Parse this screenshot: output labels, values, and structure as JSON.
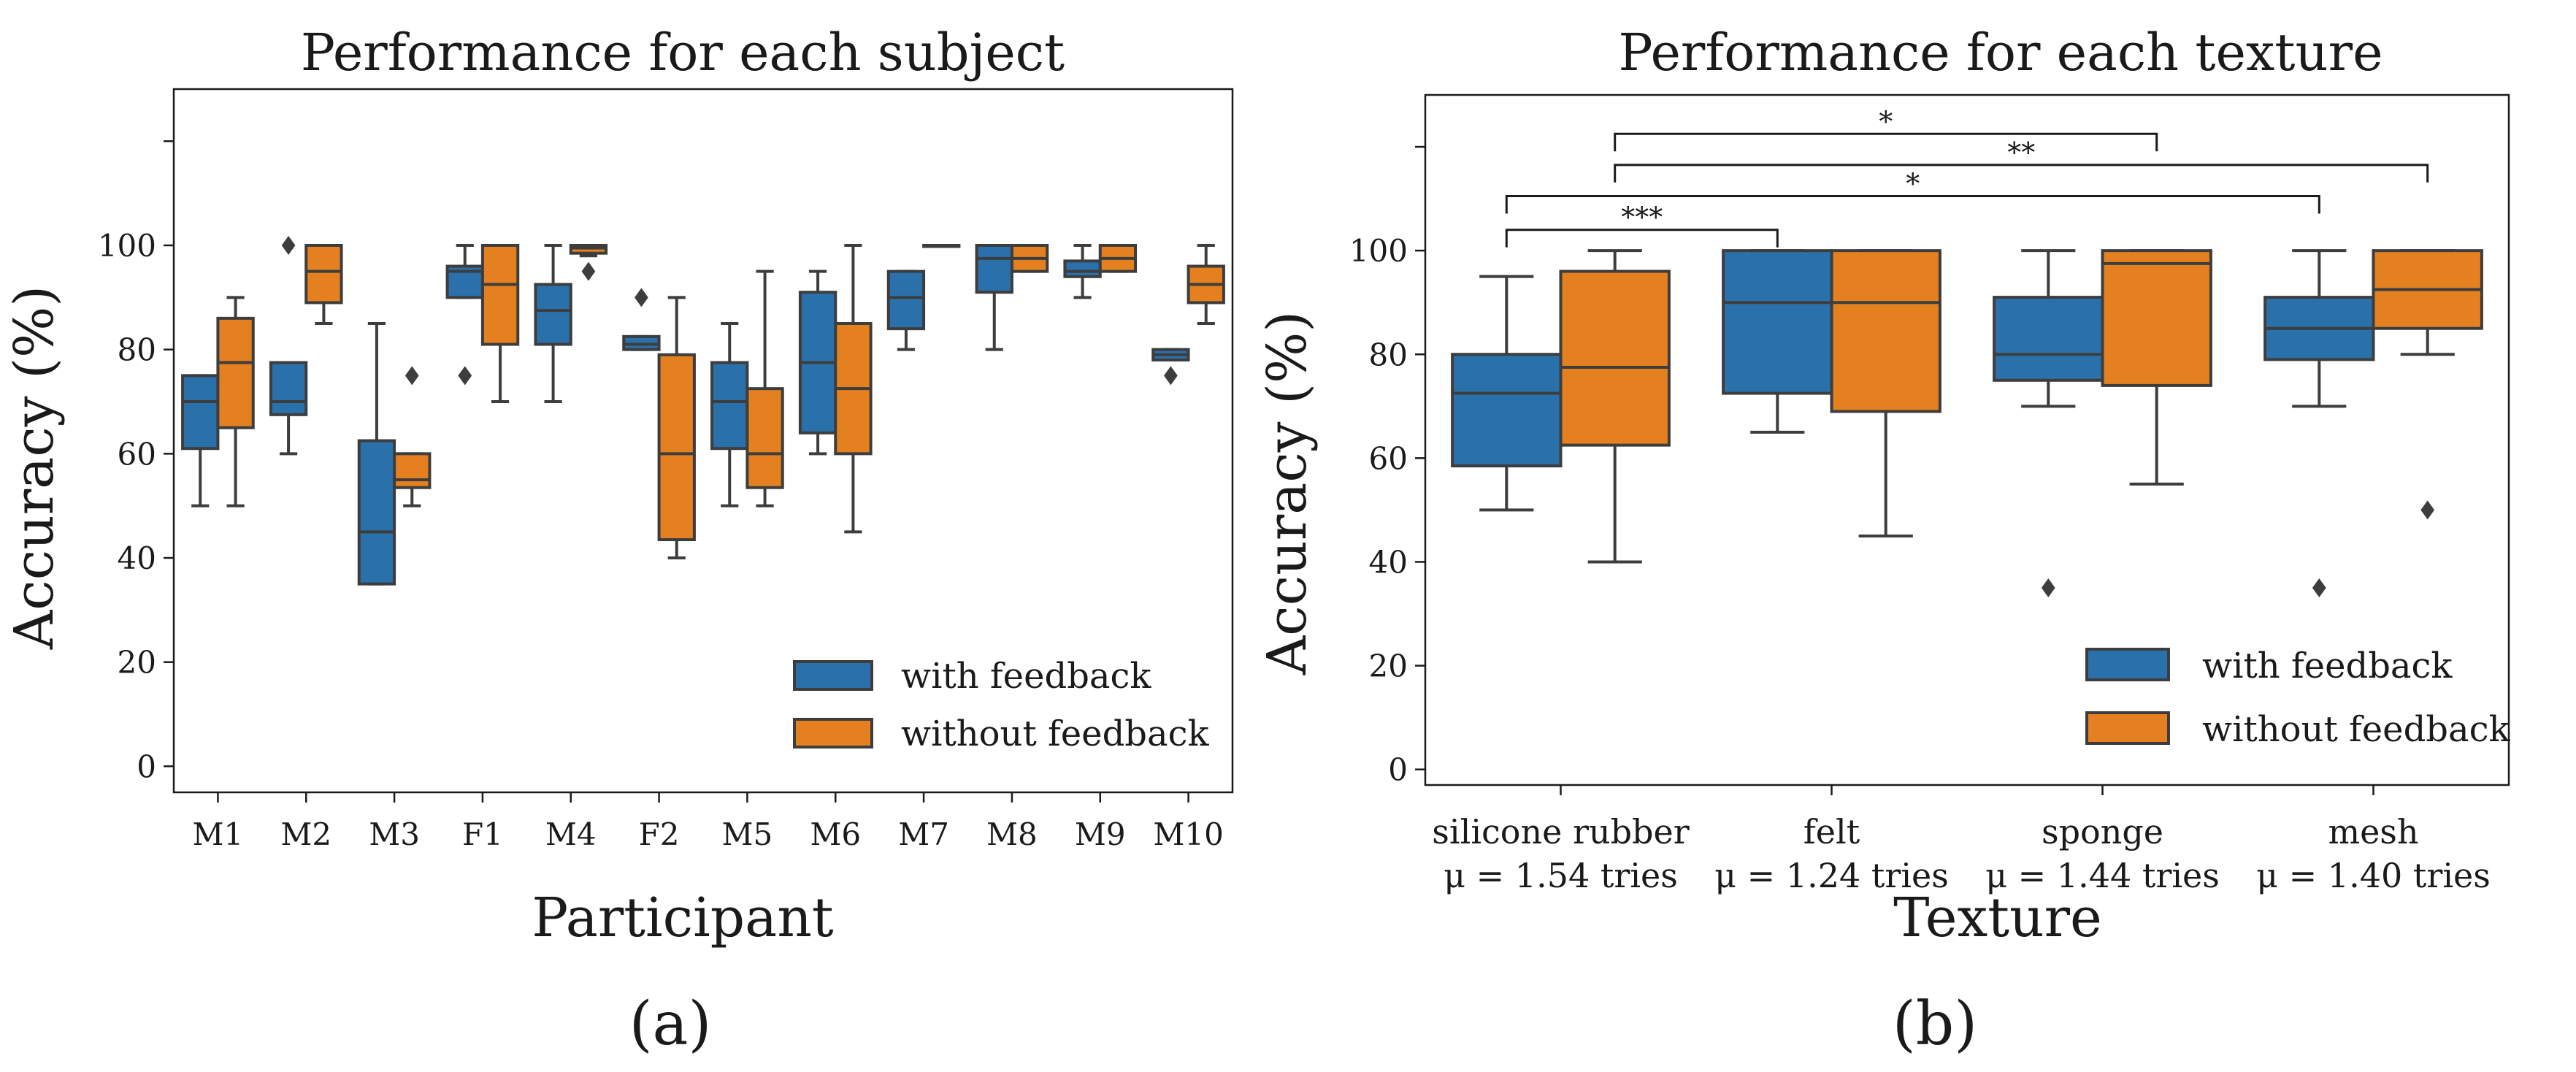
{
  "figure": {
    "label_a": "(a)",
    "label_b": "(b)"
  },
  "colors": {
    "with_feedback": "#2a71ab",
    "without_feedback": "#e4801f",
    "outline": "#3d3d3d"
  },
  "chart_data": [
    {
      "type": "box",
      "title": "Performance for each subject",
      "xlabel": "Participant",
      "ylabel": "Accuracy (%)",
      "ylim": [
        -5,
        130
      ],
      "yticks": [
        0,
        20,
        40,
        60,
        80,
        100
      ],
      "legend": {
        "position": "lower-right",
        "entries": [
          "with feedback",
          "without feedback"
        ]
      },
      "categories": [
        "M1",
        "M2",
        "M3",
        "F1",
        "M4",
        "F2",
        "M5",
        "M6",
        "M7",
        "M8",
        "M9",
        "M10"
      ],
      "series": [
        {
          "name": "with feedback",
          "boxes": [
            {
              "whislo": 50,
              "q1": 61,
              "med": 70,
              "q3": 75,
              "whishi": 75,
              "fliers": []
            },
            {
              "whislo": 60,
              "q1": 67.5,
              "med": 70,
              "q3": 77.5,
              "whishi": 77.5,
              "fliers": [
                100
              ]
            },
            {
              "whislo": 35,
              "q1": 35,
              "med": 45,
              "q3": 62.5,
              "whishi": 85,
              "fliers": []
            },
            {
              "whislo": 90,
              "q1": 90,
              "med": 95,
              "q3": 96,
              "whishi": 100,
              "fliers": [
                75
              ]
            },
            {
              "whislo": 70,
              "q1": 81,
              "med": 87.5,
              "q3": 92.5,
              "whishi": 100,
              "fliers": []
            },
            {
              "whislo": 80,
              "q1": 80,
              "med": 81,
              "q3": 82.5,
              "whishi": 82.5,
              "fliers": [
                90
              ]
            },
            {
              "whislo": 50,
              "q1": 61,
              "med": 70,
              "q3": 77.5,
              "whishi": 85,
              "fliers": []
            },
            {
              "whislo": 60,
              "q1": 64,
              "med": 77.5,
              "q3": 91,
              "whishi": 95,
              "fliers": []
            },
            {
              "whislo": 80,
              "q1": 84,
              "med": 90,
              "q3": 95,
              "whishi": 95,
              "fliers": []
            },
            {
              "whislo": 80,
              "q1": 91,
              "med": 97.5,
              "q3": 100,
              "whishi": 100,
              "fliers": []
            },
            {
              "whislo": 90,
              "q1": 94,
              "med": 95,
              "q3": 97,
              "whishi": 100,
              "fliers": []
            },
            {
              "whislo": 78,
              "q1": 78,
              "med": 79,
              "q3": 80,
              "whishi": 80,
              "fliers": [
                75
              ]
            }
          ]
        },
        {
          "name": "without feedback",
          "boxes": [
            {
              "whislo": 50,
              "q1": 65,
              "med": 77.5,
              "q3": 86,
              "whishi": 90,
              "fliers": []
            },
            {
              "whislo": 85,
              "q1": 89,
              "med": 95,
              "q3": 100,
              "whishi": 100,
              "fliers": []
            },
            {
              "whislo": 50,
              "q1": 53.5,
              "med": 55,
              "q3": 60,
              "whishi": 60,
              "fliers": [
                75
              ]
            },
            {
              "whislo": 70,
              "q1": 81,
              "med": 92.5,
              "q3": 100,
              "whishi": 100,
              "fliers": []
            },
            {
              "whislo": 98,
              "q1": 98.5,
              "med": 99.5,
              "q3": 100,
              "whishi": 100,
              "fliers": [
                95
              ]
            },
            {
              "whislo": 40,
              "q1": 43.5,
              "med": 60,
              "q3": 79,
              "whishi": 90,
              "fliers": []
            },
            {
              "whislo": 50,
              "q1": 53.5,
              "med": 60,
              "q3": 72.5,
              "whishi": 95,
              "fliers": []
            },
            {
              "whislo": 45,
              "q1": 60,
              "med": 72.5,
              "q3": 85,
              "whishi": 100,
              "fliers": []
            },
            {
              "whislo": 100,
              "q1": 100,
              "med": 100,
              "q3": 100,
              "whishi": 100,
              "fliers": []
            },
            {
              "whislo": 95,
              "q1": 95,
              "med": 97.5,
              "q3": 100,
              "whishi": 100,
              "fliers": []
            },
            {
              "whislo": 95,
              "q1": 95,
              "med": 97.5,
              "q3": 100,
              "whishi": 100,
              "fliers": []
            },
            {
              "whislo": 85,
              "q1": 89,
              "med": 92.5,
              "q3": 96,
              "whishi": 100,
              "fliers": []
            }
          ]
        }
      ]
    },
    {
      "type": "box",
      "title": "Performance for each texture",
      "xlabel": "Texture",
      "ylabel": "Accuracy (%)",
      "ylim": [
        -3,
        130
      ],
      "yticks": [
        0,
        20,
        40,
        60,
        80,
        100
      ],
      "legend": {
        "position": "lower-right",
        "entries": [
          "with feedback",
          "without feedback"
        ]
      },
      "categories": [
        "silicone rubber",
        "felt",
        "sponge",
        "mesh"
      ],
      "category_notes": [
        "μ = 1.54 tries",
        "μ = 1.24 tries",
        "μ = 1.44 tries",
        "μ = 1.40 tries"
      ],
      "series": [
        {
          "name": "with feedback",
          "boxes": [
            {
              "whislo": 50,
              "q1": 58.5,
              "med": 72.5,
              "q3": 80,
              "whishi": 95,
              "fliers": []
            },
            {
              "whislo": 65,
              "q1": 72.5,
              "med": 90,
              "q3": 100,
              "whishi": 100,
              "fliers": []
            },
            {
              "whislo": 70,
              "q1": 75,
              "med": 80,
              "q3": 91,
              "whishi": 100,
              "fliers": [
                35
              ]
            },
            {
              "whislo": 70,
              "q1": 79,
              "med": 85,
              "q3": 91,
              "whishi": 100,
              "fliers": [
                35
              ]
            }
          ]
        },
        {
          "name": "without feedback",
          "boxes": [
            {
              "whislo": 40,
              "q1": 62.5,
              "med": 77.5,
              "q3": 96,
              "whishi": 100,
              "fliers": []
            },
            {
              "whislo": 45,
              "q1": 69,
              "med": 90,
              "q3": 100,
              "whishi": 100,
              "fliers": []
            },
            {
              "whislo": 55,
              "q1": 74,
              "med": 97.5,
              "q3": 100,
              "whishi": 100,
              "fliers": []
            },
            {
              "whislo": 80,
              "q1": 85,
              "med": 92.5,
              "q3": 100,
              "whishi": 100,
              "fliers": [
                50
              ]
            }
          ]
        }
      ],
      "significance": [
        {
          "from": [
            0,
            "with feedback"
          ],
          "to": [
            1,
            "with feedback"
          ],
          "label": "***",
          "level": 104
        },
        {
          "from": [
            0,
            "with feedback"
          ],
          "to": [
            3,
            "with feedback"
          ],
          "label": "*",
          "level": 110.5
        },
        {
          "from": [
            0,
            "without feedback"
          ],
          "to": [
            3,
            "without feedback"
          ],
          "label": "**",
          "level": 116.5
        },
        {
          "from": [
            0,
            "without feedback"
          ],
          "to": [
            2,
            "without feedback"
          ],
          "label": "*",
          "level": 122.5
        }
      ]
    }
  ]
}
